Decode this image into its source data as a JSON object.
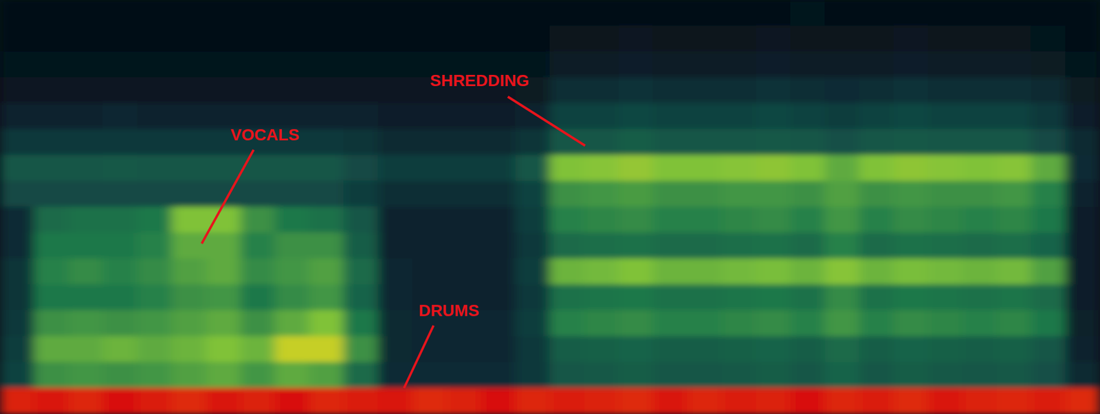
{
  "chart_data": {
    "type": "heatmap",
    "tick_labels": false,
    "cells": [
      [
        0.03,
        0.03,
        0.03,
        0.04,
        0.03,
        0.03,
        0.03,
        0.03,
        0.03,
        0.03,
        0.03,
        0.03,
        0.03,
        0.03,
        0.03,
        0.03,
        0.04,
        0.04,
        0.04,
        0.04,
        0.04,
        0.04,
        0.04,
        0.05,
        0.04,
        0.04,
        0.04,
        0.04,
        0.04,
        0.04,
        0.04,
        0.03
      ],
      [
        0.04,
        0.04,
        0.04,
        0.04,
        0.04,
        0.04,
        0.04,
        0.04,
        0.04,
        0.04,
        0.04,
        0.04,
        0.04,
        0.04,
        0.04,
        0.04,
        0.06,
        0.06,
        0.07,
        0.06,
        0.06,
        0.06,
        0.07,
        0.06,
        0.06,
        0.06,
        0.07,
        0.06,
        0.06,
        0.06,
        0.05,
        0.04
      ],
      [
        0.05,
        0.05,
        0.05,
        0.05,
        0.05,
        0.05,
        0.05,
        0.05,
        0.05,
        0.05,
        0.05,
        0.05,
        0.05,
        0.05,
        0.05,
        0.05,
        0.09,
        0.09,
        0.1,
        0.09,
        0.09,
        0.09,
        0.1,
        0.09,
        0.09,
        0.09,
        0.1,
        0.09,
        0.09,
        0.09,
        0.08,
        0.05
      ],
      [
        0.07,
        0.07,
        0.07,
        0.07,
        0.07,
        0.07,
        0.07,
        0.07,
        0.07,
        0.07,
        0.07,
        0.07,
        0.07,
        0.07,
        0.07,
        0.08,
        0.16,
        0.16,
        0.17,
        0.16,
        0.16,
        0.16,
        0.17,
        0.16,
        0.15,
        0.16,
        0.17,
        0.16,
        0.16,
        0.16,
        0.14,
        0.08
      ],
      [
        0.12,
        0.12,
        0.12,
        0.13,
        0.12,
        0.12,
        0.12,
        0.12,
        0.12,
        0.12,
        0.12,
        0.1,
        0.1,
        0.1,
        0.1,
        0.12,
        0.24,
        0.24,
        0.25,
        0.24,
        0.24,
        0.24,
        0.25,
        0.24,
        0.22,
        0.24,
        0.25,
        0.24,
        0.24,
        0.24,
        0.2,
        0.1
      ],
      [
        0.2,
        0.2,
        0.2,
        0.2,
        0.2,
        0.2,
        0.2,
        0.2,
        0.2,
        0.2,
        0.18,
        0.14,
        0.14,
        0.14,
        0.14,
        0.18,
        0.3,
        0.3,
        0.32,
        0.3,
        0.3,
        0.3,
        0.31,
        0.3,
        0.28,
        0.3,
        0.31,
        0.3,
        0.3,
        0.3,
        0.26,
        0.14
      ],
      [
        0.3,
        0.3,
        0.3,
        0.31,
        0.3,
        0.3,
        0.3,
        0.3,
        0.3,
        0.3,
        0.26,
        0.22,
        0.22,
        0.22,
        0.22,
        0.3,
        0.55,
        0.56,
        0.58,
        0.55,
        0.55,
        0.56,
        0.57,
        0.55,
        0.5,
        0.55,
        0.57,
        0.56,
        0.55,
        0.56,
        0.5,
        0.15
      ],
      [
        0.26,
        0.26,
        0.26,
        0.26,
        0.26,
        0.26,
        0.26,
        0.26,
        0.26,
        0.26,
        0.22,
        0.16,
        0.16,
        0.16,
        0.16,
        0.24,
        0.45,
        0.46,
        0.47,
        0.45,
        0.45,
        0.46,
        0.46,
        0.45,
        0.48,
        0.45,
        0.46,
        0.45,
        0.45,
        0.46,
        0.42,
        0.12
      ],
      [
        0.15,
        0.36,
        0.38,
        0.38,
        0.4,
        0.55,
        0.55,
        0.45,
        0.4,
        0.38,
        0.3,
        0.12,
        0.12,
        0.12,
        0.12,
        0.22,
        0.42,
        0.43,
        0.44,
        0.42,
        0.42,
        0.43,
        0.44,
        0.42,
        0.46,
        0.42,
        0.44,
        0.43,
        0.42,
        0.43,
        0.4,
        0.1
      ],
      [
        0.15,
        0.4,
        0.4,
        0.4,
        0.42,
        0.5,
        0.5,
        0.42,
        0.45,
        0.45,
        0.32,
        0.12,
        0.12,
        0.12,
        0.12,
        0.2,
        0.36,
        0.37,
        0.38,
        0.36,
        0.36,
        0.37,
        0.38,
        0.36,
        0.42,
        0.36,
        0.38,
        0.37,
        0.36,
        0.37,
        0.34,
        0.1
      ],
      [
        0.18,
        0.42,
        0.44,
        0.42,
        0.44,
        0.48,
        0.5,
        0.44,
        0.46,
        0.48,
        0.36,
        0.13,
        0.12,
        0.12,
        0.12,
        0.22,
        0.52,
        0.53,
        0.55,
        0.52,
        0.52,
        0.53,
        0.54,
        0.52,
        0.56,
        0.52,
        0.54,
        0.53,
        0.52,
        0.53,
        0.48,
        0.1
      ],
      [
        0.18,
        0.4,
        0.4,
        0.4,
        0.42,
        0.45,
        0.46,
        0.4,
        0.44,
        0.46,
        0.34,
        0.13,
        0.12,
        0.12,
        0.12,
        0.2,
        0.38,
        0.39,
        0.4,
        0.38,
        0.38,
        0.39,
        0.4,
        0.38,
        0.44,
        0.38,
        0.4,
        0.39,
        0.38,
        0.39,
        0.36,
        0.1
      ],
      [
        0.2,
        0.45,
        0.46,
        0.45,
        0.46,
        0.48,
        0.5,
        0.45,
        0.5,
        0.55,
        0.4,
        0.14,
        0.13,
        0.13,
        0.13,
        0.22,
        0.42,
        0.43,
        0.44,
        0.42,
        0.42,
        0.43,
        0.44,
        0.42,
        0.46,
        0.42,
        0.44,
        0.43,
        0.42,
        0.43,
        0.4,
        0.11
      ],
      [
        0.22,
        0.5,
        0.5,
        0.52,
        0.5,
        0.52,
        0.55,
        0.52,
        0.65,
        0.65,
        0.45,
        0.14,
        0.13,
        0.13,
        0.13,
        0.2,
        0.32,
        0.33,
        0.34,
        0.32,
        0.32,
        0.33,
        0.34,
        0.32,
        0.36,
        0.32,
        0.34,
        0.33,
        0.32,
        0.33,
        0.3,
        0.12
      ],
      [
        0.24,
        0.45,
        0.46,
        0.45,
        0.46,
        0.48,
        0.5,
        0.46,
        0.5,
        0.48,
        0.36,
        0.15,
        0.15,
        0.15,
        0.15,
        0.2,
        0.3,
        0.31,
        0.32,
        0.3,
        0.3,
        0.31,
        0.32,
        0.3,
        0.34,
        0.3,
        0.32,
        0.31,
        0.3,
        0.31,
        0.28,
        0.14
      ],
      [
        0.94,
        0.96,
        0.93,
        0.97,
        0.95,
        0.92,
        0.96,
        0.94,
        0.97,
        0.93,
        0.95,
        0.96,
        0.92,
        0.94,
        0.97,
        0.93,
        0.95,
        0.94,
        0.92,
        0.96,
        0.93,
        0.95,
        0.94,
        0.97,
        0.93,
        0.95,
        0.92,
        0.96,
        0.94,
        0.93,
        0.95,
        0.92
      ]
    ],
    "annotations": [
      {
        "text": "VOCALS"
      },
      {
        "text": "SHREDDING"
      },
      {
        "text": "DRUMS"
      }
    ]
  }
}
